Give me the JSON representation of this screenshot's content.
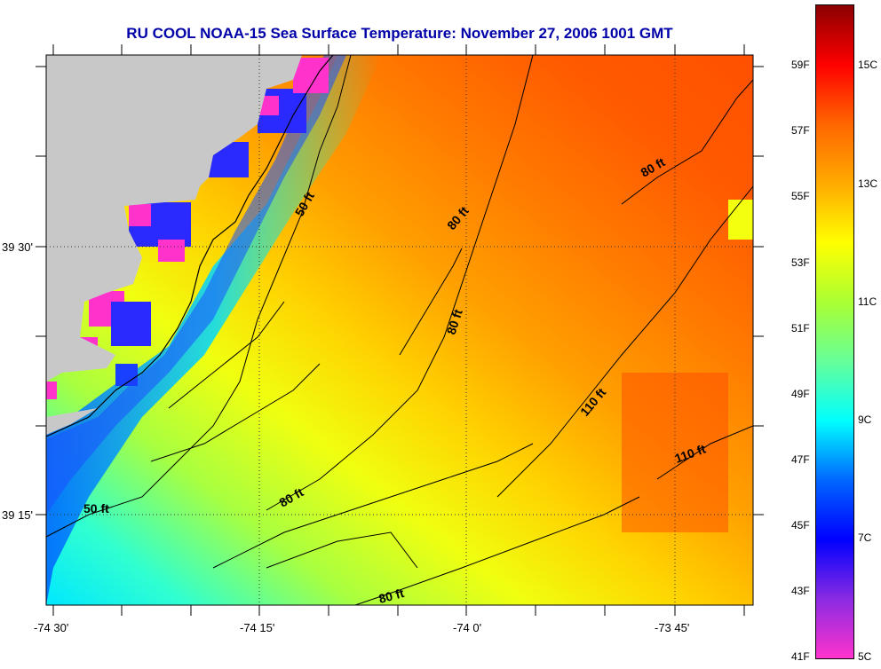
{
  "title": "RU COOL  NOAA-15  Sea Surface Temperature:  November 27, 2006 1001 GMT",
  "latitude_labels": [
    "39 30'",
    "39 15'"
  ],
  "longitude_labels": [
    "-74 30'",
    "-74 15'",
    "-74 0'",
    "-73 45'"
  ],
  "depth_contour_labels": [
    "50 ft",
    "50 ft",
    "80 ft",
    "80 ft",
    "80 ft",
    "80 ft",
    "80 ft",
    "110 ft",
    "110 ft"
  ],
  "colorbar": {
    "fahrenheit_labels": [
      "59F",
      "57F",
      "55F",
      "53F",
      "51F",
      "49F",
      "47F",
      "45F",
      "43F",
      "41F"
    ],
    "celsius_labels": [
      "15C",
      "13C",
      "11C",
      "9C",
      "7C",
      "5C"
    ],
    "range_f": [
      41,
      61
    ],
    "colors": [
      "#ff33cc",
      "#8a2be2",
      "#0000ff",
      "#0066ff",
      "#00ffff",
      "#66ff99",
      "#aaff33",
      "#ffff00",
      "#ffaa00",
      "#ff6600",
      "#ff0000",
      "#8b0000"
    ]
  },
  "colors": {
    "land": "#c8c8c8",
    "title_text": "#0000a8",
    "contour": "#000000"
  }
}
